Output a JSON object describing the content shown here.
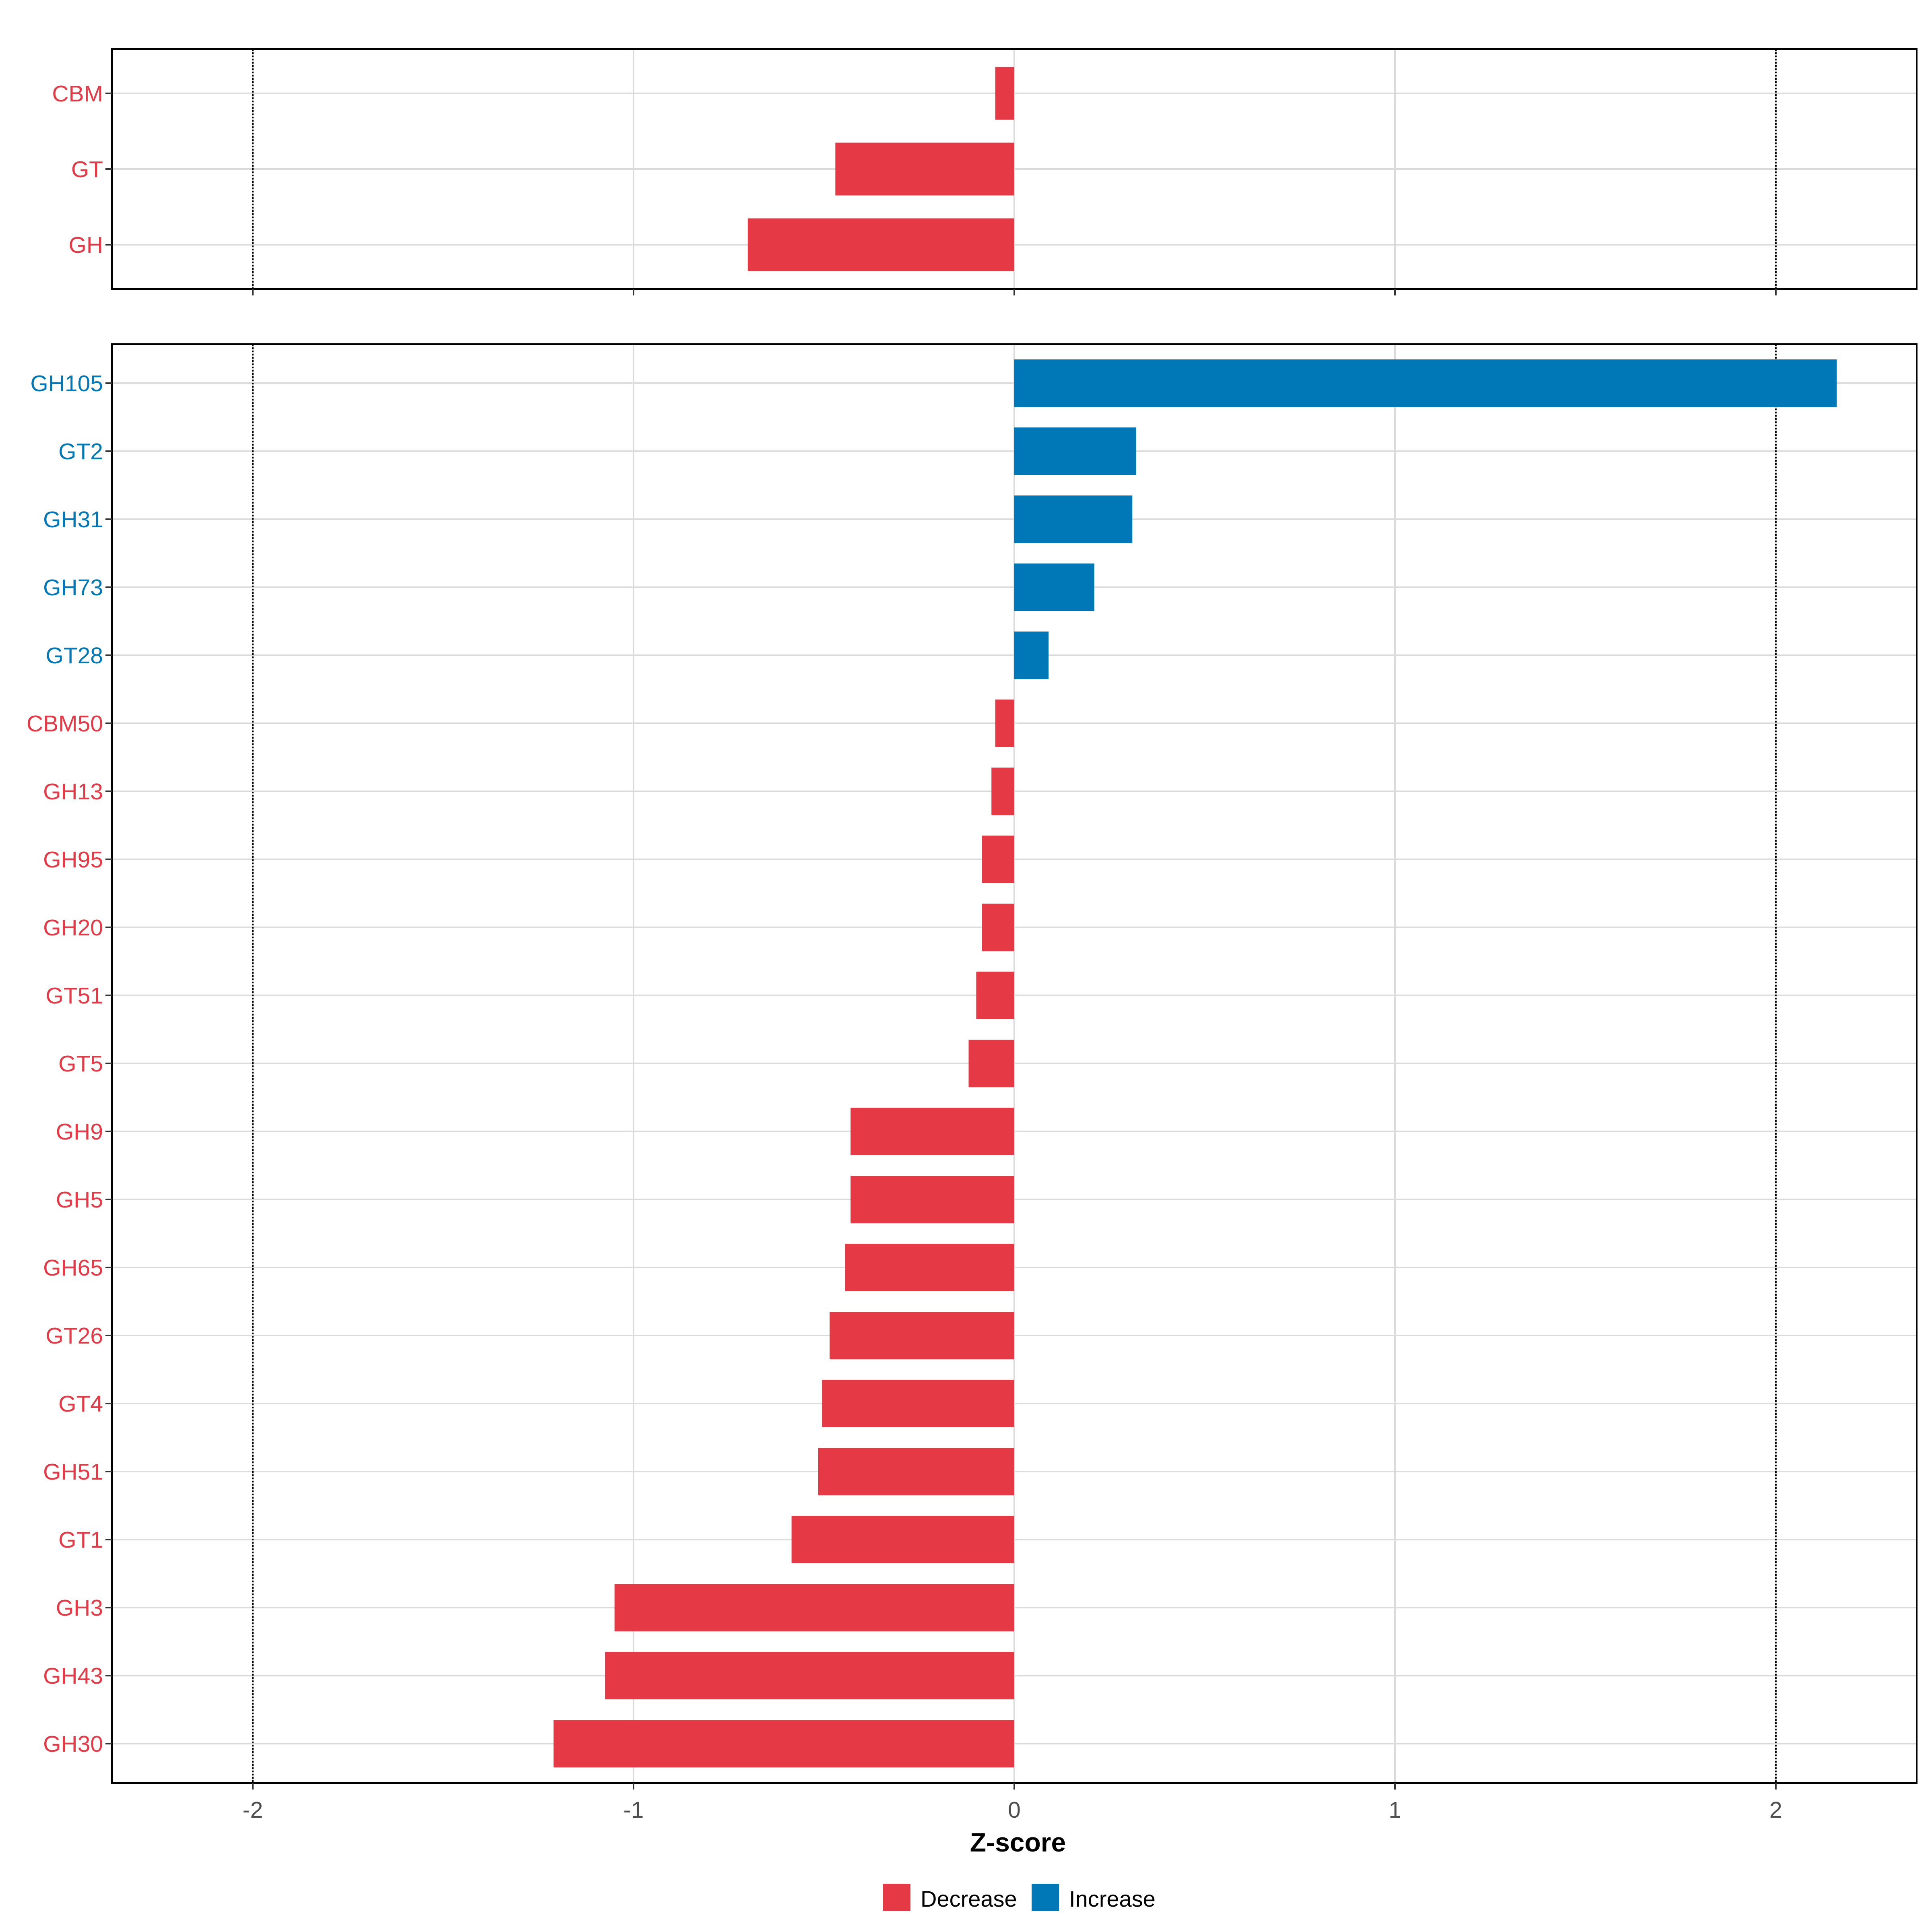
{
  "chart_data": [
    {
      "type": "bar",
      "orientation": "horizontal",
      "categories": [
        "CBM",
        "GT",
        "GH"
      ],
      "values": [
        -0.05,
        -0.47,
        -0.7
      ],
      "xlim": [
        -2.37,
        2.37
      ],
      "grid": true
    },
    {
      "type": "bar",
      "orientation": "horizontal",
      "categories": [
        "GH105",
        "GT2",
        "GH31",
        "GH73",
        "GT28",
        "CBM50",
        "GH13",
        "GH95",
        "GH20",
        "GT51",
        "GT5",
        "GH9",
        "GH5",
        "GH65",
        "GT26",
        "GT4",
        "GH51",
        "GT1",
        "GH3",
        "GH43",
        "GH30"
      ],
      "values": [
        2.16,
        0.32,
        0.31,
        0.21,
        0.09,
        -0.05,
        -0.06,
        -0.085,
        -0.085,
        -0.1,
        -0.12,
        -0.43,
        -0.43,
        -0.445,
        -0.485,
        -0.505,
        -0.515,
        -0.585,
        -1.05,
        -1.075,
        -1.21
      ],
      "xlabel": "Z-score",
      "xticks": [
        -2,
        -1,
        0,
        1,
        2
      ],
      "xlim": [
        -2.37,
        2.37
      ],
      "grid": true
    }
  ],
  "reference_lines": [
    -2,
    2
  ],
  "legend": {
    "position": "bottom",
    "items": [
      {
        "label": "Decrease",
        "color": "#E63946"
      },
      {
        "label": "Increase",
        "color": "#0077B6"
      }
    ]
  },
  "colors": {
    "decrease": "#E63946",
    "increase": "#0077B6",
    "grid": "#DBDBDB"
  }
}
